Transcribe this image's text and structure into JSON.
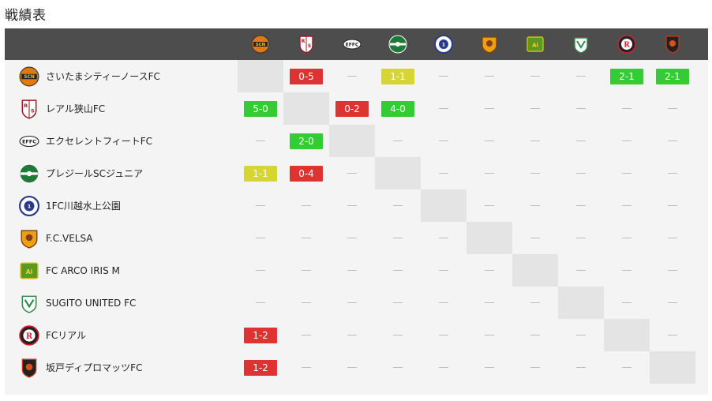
{
  "page_title": "戦績表",
  "colors": {
    "win": "#33cc33",
    "loss": "#dd3333",
    "draw": "#d6d633",
    "header": "#4d4d4d"
  },
  "teams": [
    {
      "name": "さいたまシティーノースFC",
      "icon": "saitama-city-north-crest-icon"
    },
    {
      "name": "レアル狭山FC",
      "icon": "real-sayama-crest-icon"
    },
    {
      "name": "エクセレントフィートFC",
      "icon": "excellent-feet-crest-icon"
    },
    {
      "name": "プレジールSCジュニア",
      "icon": "plaisir-sc-crest-icon"
    },
    {
      "name": "1FC川越水上公園",
      "icon": "fc-kawagoe-crest-icon"
    },
    {
      "name": "F.C.VELSA",
      "icon": "fc-velsa-crest-icon"
    },
    {
      "name": "FC ARCO IRIS M",
      "icon": "fc-arco-iris-crest-icon"
    },
    {
      "name": "SUGITO UNITED FC",
      "icon": "sugito-united-crest-icon"
    },
    {
      "name": "FCリアル",
      "icon": "fc-real-crest-icon"
    },
    {
      "name": "坂戸ディプロマッツFC",
      "icon": "sakado-diplomats-crest-icon"
    }
  ],
  "empty_mark": "—",
  "results": [
    [
      "self",
      "0-5",
      "",
      "1-1",
      "",
      "",
      "",
      "",
      "2-1",
      "2-1"
    ],
    [
      "5-0",
      "self",
      "0-2",
      "4-0",
      "",
      "",
      "",
      "",
      "",
      ""
    ],
    [
      "",
      "2-0",
      "self",
      "",
      "",
      "",
      "",
      "",
      "",
      ""
    ],
    [
      "1-1",
      "0-4",
      "",
      "self",
      "",
      "",
      "",
      "",
      "",
      ""
    ],
    [
      "",
      "",
      "",
      "",
      "self",
      "",
      "",
      "",
      "",
      ""
    ],
    [
      "",
      "",
      "",
      "",
      "",
      "self",
      "",
      "",
      "",
      ""
    ],
    [
      "",
      "",
      "",
      "",
      "",
      "",
      "self",
      "",
      "",
      ""
    ],
    [
      "",
      "",
      "",
      "",
      "",
      "",
      "",
      "self",
      "",
      ""
    ],
    [
      "1-2",
      "",
      "",
      "",
      "",
      "",
      "",
      "",
      "self",
      ""
    ],
    [
      "1-2",
      "",
      "",
      "",
      "",
      "",
      "",
      "",
      "",
      "self"
    ]
  ]
}
